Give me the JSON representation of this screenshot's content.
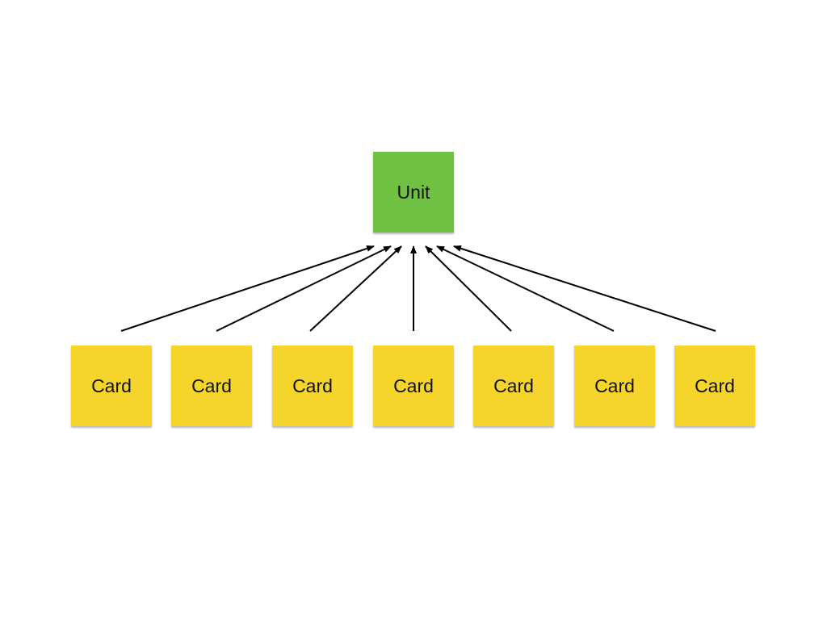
{
  "unit": {
    "label": "Unit",
    "color": "#70c043"
  },
  "cards": [
    {
      "label": "Card"
    },
    {
      "label": "Card"
    },
    {
      "label": "Card"
    },
    {
      "label": "Card"
    },
    {
      "label": "Card"
    },
    {
      "label": "Card"
    },
    {
      "label": "Card"
    }
  ],
  "card_color": "#f5d42c",
  "arrow_color": "#000000",
  "arrows": [
    {
      "from": "card-0",
      "to": "unit"
    },
    {
      "from": "card-1",
      "to": "unit"
    },
    {
      "from": "card-2",
      "to": "unit"
    },
    {
      "from": "card-3",
      "to": "unit"
    },
    {
      "from": "card-4",
      "to": "unit"
    },
    {
      "from": "card-5",
      "to": "unit"
    },
    {
      "from": "card-6",
      "to": "unit"
    }
  ]
}
